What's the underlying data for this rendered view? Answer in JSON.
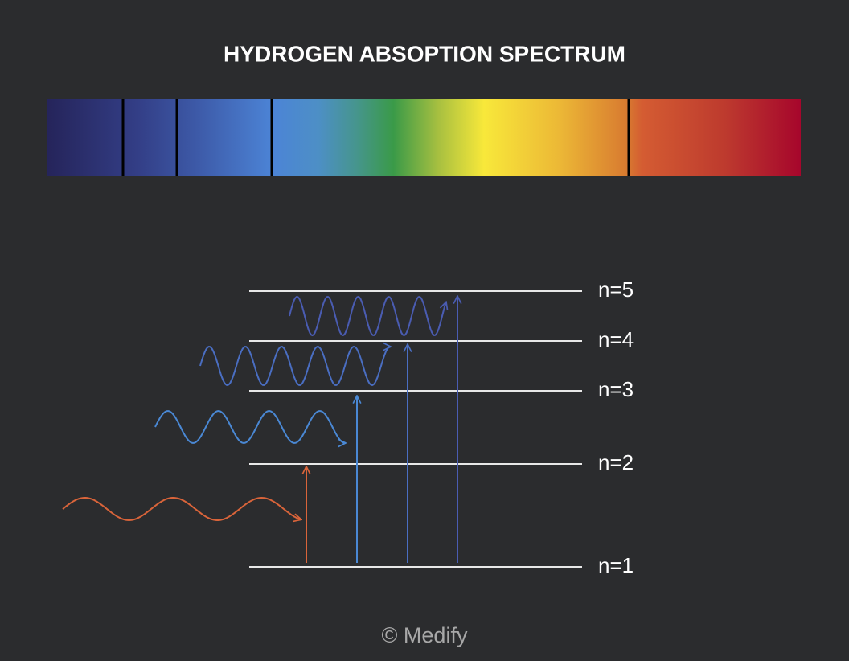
{
  "title": "HYDROGEN ABSOPTION SPECTRUM",
  "levels": [
    "n=5",
    "n=4",
    "n=3",
    "n=2",
    "n=1"
  ],
  "watermark": "© Medify"
}
